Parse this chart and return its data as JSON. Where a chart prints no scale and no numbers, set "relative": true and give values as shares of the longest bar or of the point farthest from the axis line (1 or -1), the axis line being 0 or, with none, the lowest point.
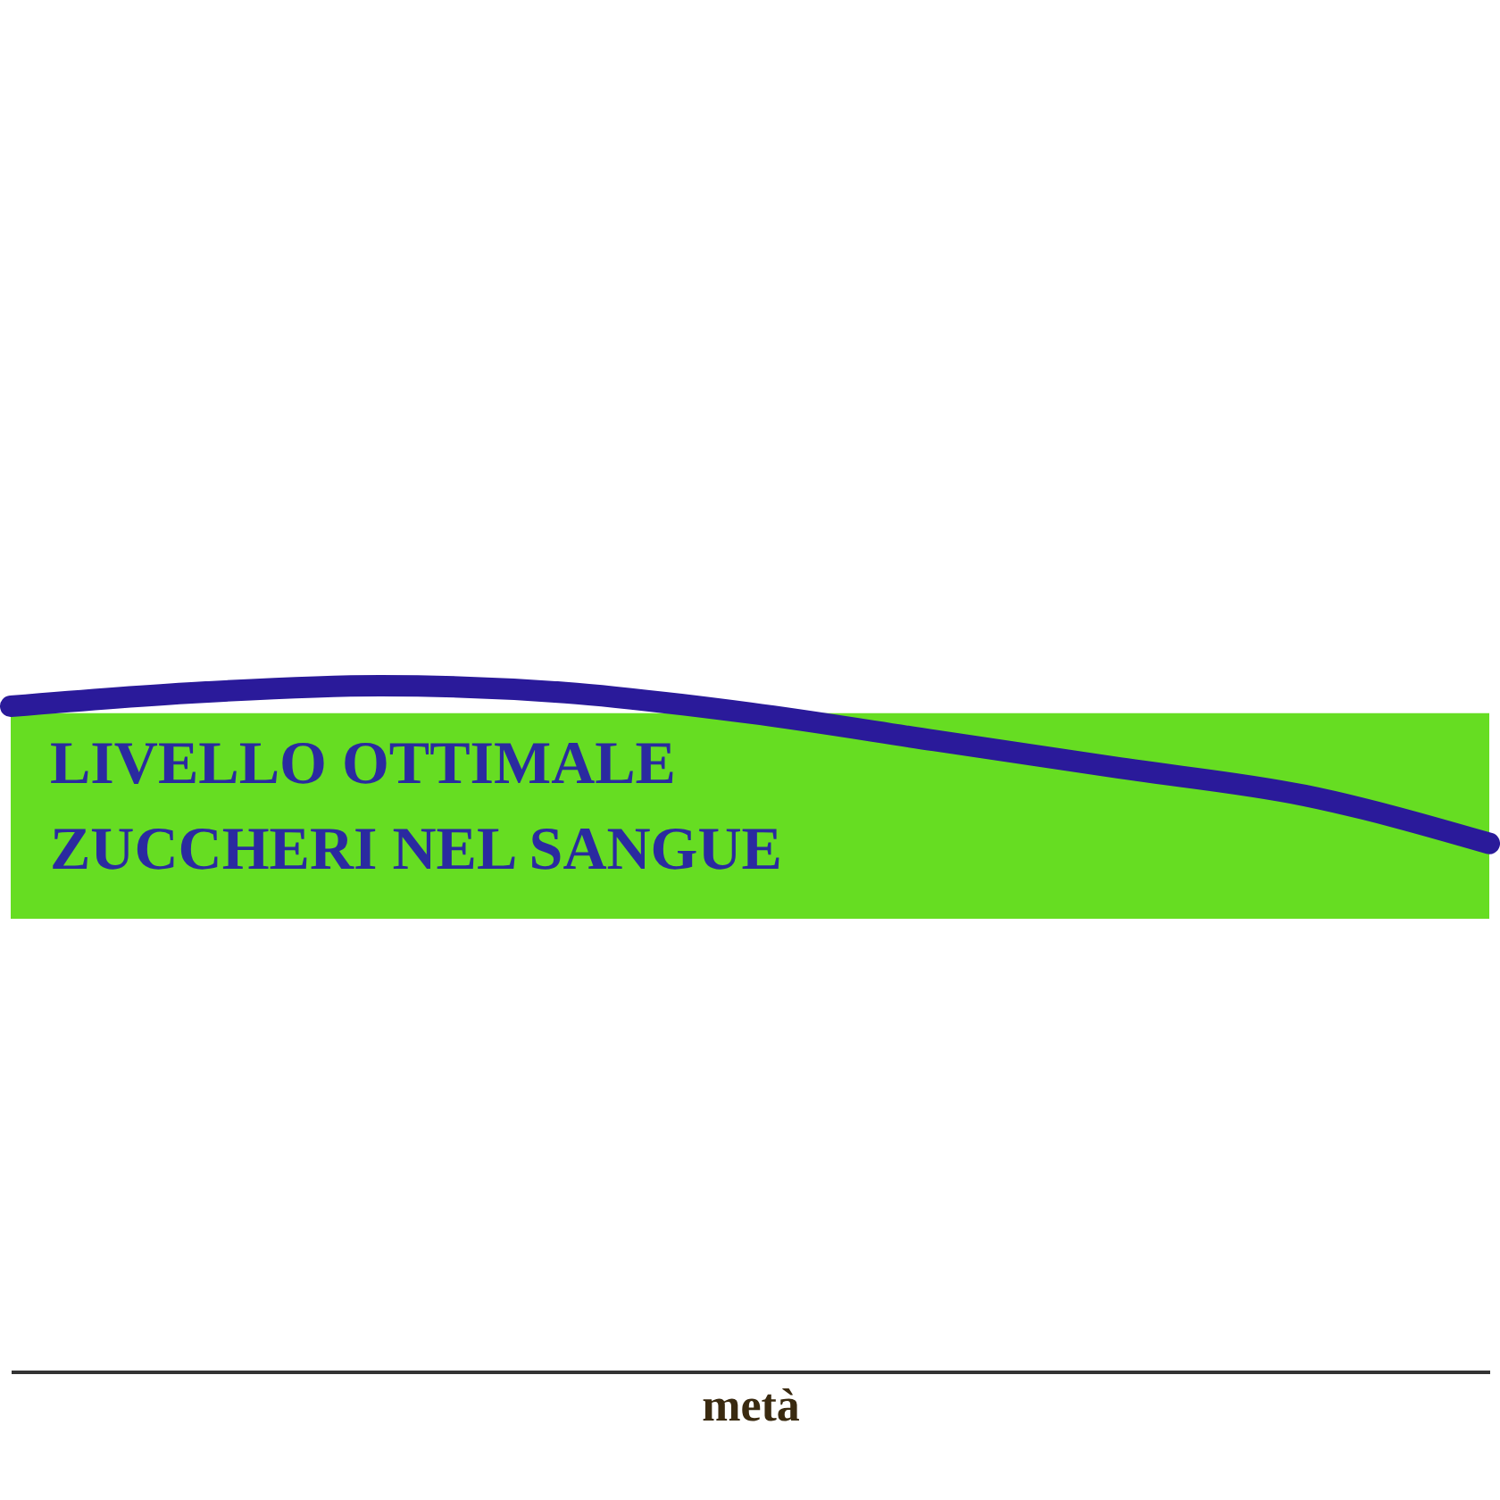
{
  "chart_data": {
    "type": "line",
    "relative": true,
    "xlabel": "metà",
    "categories": [
      null,
      null,
      null,
      null,
      null,
      null,
      null,
      null,
      null
    ],
    "series": [
      {
        "color": "#2a1a9a",
        "values": [
          0.97,
          0.99,
          1,
          0.99,
          0.96,
          0.92,
          0.88,
          0.84,
          0.77
        ]
      }
    ],
    "bands": [
      {
        "axis": "y",
        "from": 0.66,
        "to": 0.96,
        "label": "LIVELLO OTTIMALE\nZUCCHERI NEL SANGUE",
        "color": "#66dd22"
      }
    ],
    "line_style": "solid"
  }
}
